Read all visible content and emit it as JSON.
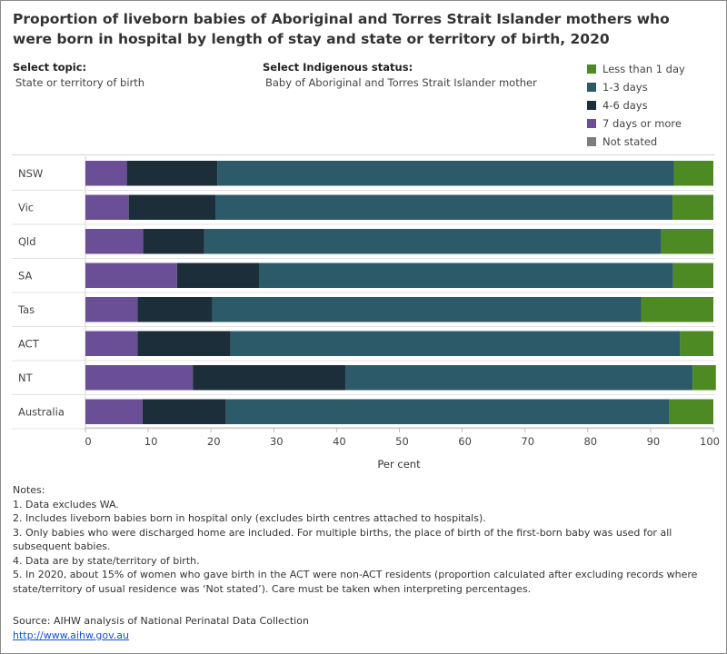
{
  "title": "Proportion of liveborn babies of Aboriginal and Torres Strait Islander mothers who were born in hospital by length of stay and state or territory of birth, 2020",
  "controls": {
    "topic_label": "Select topic:",
    "topic_value": "State or territory of birth",
    "status_label": "Select Indigenous status:",
    "status_value": "Baby of Aboriginal and Torres Strait Islander mother"
  },
  "legend": [
    {
      "label": "Less than 1 day",
      "color": "#4e8a23"
    },
    {
      "label": "1-3 days",
      "color": "#2c5a68"
    },
    {
      "label": "4-6 days",
      "color": "#1c2e39"
    },
    {
      "label": "7 days or more",
      "color": "#6a4f96"
    },
    {
      "label": "Not stated",
      "color": "#7d7d7d"
    }
  ],
  "chart_data": {
    "type": "bar",
    "orientation": "horizontal",
    "stacked": true,
    "categories": [
      "NSW",
      "Vic",
      "Qld",
      "SA",
      "Tas",
      "ACT",
      "NT",
      "Australia"
    ],
    "series": [
      {
        "name": "7 days or more",
        "color": "#6a4f96",
        "values": [
          6.6,
          6.9,
          9.2,
          14.6,
          8.3,
          8.3,
          17.1,
          9.1
        ]
      },
      {
        "name": "4-6 days",
        "color": "#1c2e39",
        "values": [
          14.4,
          13.8,
          9.7,
          13.1,
          11.9,
          14.8,
          24.3,
          13.3
        ]
      },
      {
        "name": "1-3 days",
        "color": "#2c5a68",
        "values": [
          72.7,
          72.8,
          72.8,
          65.9,
          68.3,
          71.6,
          55.3,
          70.6
        ]
      },
      {
        "name": "Less than 1 day",
        "color": "#4e8a23",
        "values": [
          6.3,
          6.5,
          8.3,
          6.4,
          11.5,
          5.3,
          3.7,
          7.0
        ]
      },
      {
        "name": "Not stated",
        "color": "#7d7d7d",
        "values": [
          0.0,
          0.0,
          0.0,
          0.0,
          0.0,
          0.0,
          0.0,
          0.0
        ]
      }
    ],
    "xlabel": "Per cent",
    "xlim": [
      0,
      100
    ],
    "xticks": [
      0,
      10,
      20,
      30,
      40,
      50,
      60,
      70,
      80,
      90,
      100
    ],
    "grid": false,
    "legend_position": "top-right"
  },
  "notes": {
    "heading": "Notes:",
    "items": [
      "1. Data excludes WA.",
      "2. Includes liveborn babies born in hospital only (excludes birth centres attached to hospitals).",
      "3. Only babies who were discharged home are included. For multiple births, the place of birth of the first-born baby was used for all subsequent babies.",
      "4. Data are by state/territory of birth.",
      "5. In 2020, about 15% of women who gave birth in the ACT were non-ACT residents (proportion calculated after excluding records where state/territory of usual residence was ‘Not stated’). Care must be taken when interpreting percentages."
    ]
  },
  "source": {
    "text": "Source: AIHW analysis of National Perinatal Data Collection",
    "link": "http://www.aihw.gov.au"
  }
}
